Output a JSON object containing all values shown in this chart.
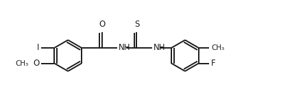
{
  "bg_color": "#ffffff",
  "line_color": "#1a1a1a",
  "lw": 1.4,
  "fig_width": 4.26,
  "fig_height": 1.52,
  "dpi": 100,
  "xlim": [
    0.0,
    10.5
  ],
  "ylim": [
    -0.5,
    3.8
  ]
}
